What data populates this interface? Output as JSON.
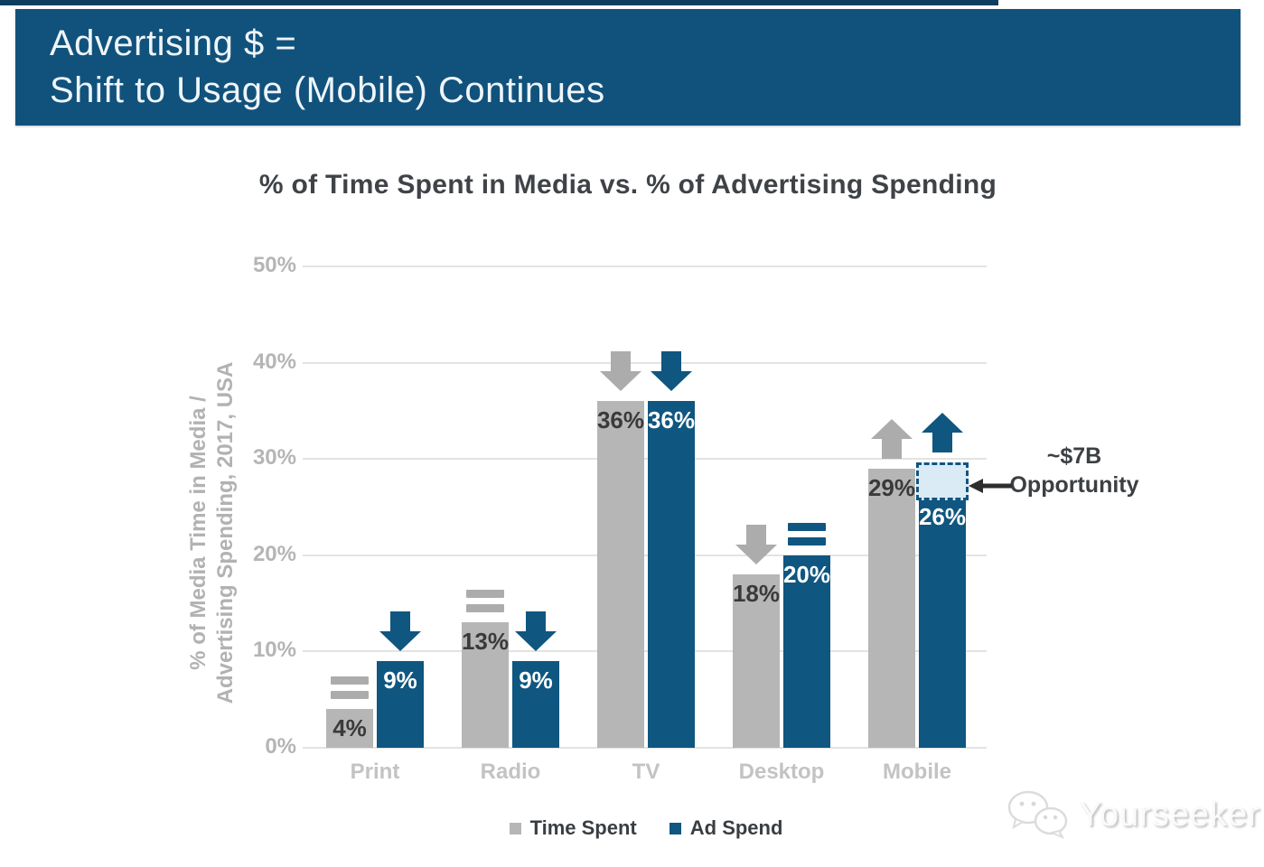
{
  "header": {
    "line1": "Advertising $ =",
    "line2": "Shift to Usage (Mobile) Continues"
  },
  "chart_data": {
    "type": "bar",
    "title": "% of Time Spent in Media vs. % of Advertising Spending",
    "ylabel_line1": "% of Media Time in Media /",
    "ylabel_line2": "Advertising Spending, 2017, USA",
    "categories": [
      "Print",
      "Radio",
      "TV",
      "Desktop",
      "Mobile"
    ],
    "series": [
      {
        "name": "Time Spent",
        "color": "#B6B6B6",
        "label_color": "#3A3A3A",
        "values": [
          4,
          13,
          36,
          18,
          29
        ],
        "trends": [
          "flat",
          "flat",
          "down",
          "down",
          "up"
        ],
        "trend_color": "#ACACAC"
      },
      {
        "name": "Ad Spend",
        "color": "#0F5680",
        "label_color": "#FFFFFF",
        "values": [
          9,
          9,
          36,
          20,
          26
        ],
        "trends": [
          "down",
          "down",
          "down",
          "flat",
          "up"
        ],
        "trend_color": "#0F5680"
      }
    ],
    "value_suffix": "%",
    "y_ticks": [
      50,
      40,
      30,
      20,
      10,
      0
    ],
    "ylim": [
      0,
      50
    ],
    "grid": true,
    "legend_position": "bottom",
    "annotation": {
      "line1": "~$7B",
      "line2": "Opportunity",
      "category": "Mobile",
      "series": "Ad Spend",
      "box_from_pct": 26,
      "box_to_pct": 29.6,
      "box_fill": "#DAEBF6",
      "box_border": "#0F5680",
      "arrow_color": "#2E2E2E"
    }
  },
  "colors": {
    "header_bg": "#11527C",
    "top_strip": "#0D3E5F",
    "grid": "#E3E3E3",
    "tick_label": "#B5B5B5",
    "category_label": "#C3C3C3",
    "axis_label": "#B2B2B2",
    "title": "#3F4347"
  },
  "watermark": {
    "text": "Yourseeker",
    "icon": "wechat-icon"
  }
}
